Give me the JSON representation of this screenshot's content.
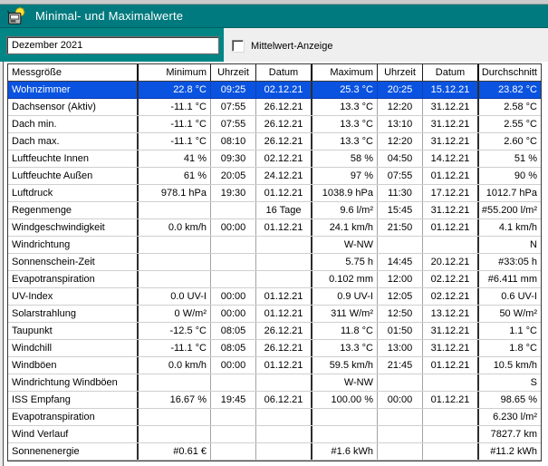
{
  "window": {
    "title": "Minimal- und Maximalwerte",
    "icon": "weather-station-sun-icon"
  },
  "toolbar": {
    "period_value": "Dezember 2021",
    "mittelwert_label": "Mittelwert-Anzeige",
    "mittelwert_checked": false
  },
  "colors": {
    "titlebar_teal": "#007a7e",
    "panel_teal": "#018585",
    "selection_blue": "#0a53e0",
    "grid_background": "#ffffff",
    "window_gray": "#efefef"
  },
  "table": {
    "columns": [
      "Messgröße",
      "Minimum",
      "Uhrzeit",
      "Datum",
      "Maximum",
      "Uhrzeit",
      "Datum",
      "Durchschnitt"
    ],
    "selected_index": 0,
    "rows": [
      [
        "Wohnzimmer",
        "22.8 °C",
        "09:25",
        "02.12.21",
        "25.3 °C",
        "20:25",
        "15.12.21",
        "23.82 °C"
      ],
      [
        "Dachsensor (Aktiv)",
        "-11.1 °C",
        "07:55",
        "26.12.21",
        "13.3 °C",
        "12:20",
        "31.12.21",
        "2.58 °C"
      ],
      [
        "Dach min.",
        "-11.1 °C",
        "07:55",
        "26.12.21",
        "13.3 °C",
        "13:10",
        "31.12.21",
        "2.55 °C"
      ],
      [
        "Dach max.",
        "-11.1 °C",
        "08:10",
        "26.12.21",
        "13.3 °C",
        "12:20",
        "31.12.21",
        "2.60 °C"
      ],
      [
        "Luftfeuchte Innen",
        "41 %",
        "09:30",
        "02.12.21",
        "58 %",
        "04:50",
        "14.12.21",
        "51 %"
      ],
      [
        "Luftfeuchte Außen",
        "61 %",
        "20:05",
        "24.12.21",
        "97 %",
        "07:55",
        "01.12.21",
        "90 %"
      ],
      [
        "Luftdruck",
        "978.1 hPa",
        "19:30",
        "01.12.21",
        "1038.9 hPa",
        "11:30",
        "17.12.21",
        "1012.7 hPa"
      ],
      [
        "Regenmenge",
        "",
        "",
        "16 Tage",
        "9.6 l/m²",
        "15:45",
        "31.12.21",
        "#55.200 l/m²"
      ],
      [
        "Windgeschwindigkeit",
        "0.0 km/h",
        "00:00",
        "01.12.21",
        "24.1 km/h",
        "21:50",
        "01.12.21",
        "4.1 km/h"
      ],
      [
        "Windrichtung",
        "",
        "",
        "",
        "W-NW",
        "",
        "",
        "N"
      ],
      [
        "Sonnenschein-Zeit",
        "",
        "",
        "",
        "5.75 h",
        "14:45",
        "20.12.21",
        "#33:05 h"
      ],
      [
        "Evapotranspiration",
        "",
        "",
        "",
        "0.102 mm",
        "12:00",
        "02.12.21",
        "#6.411 mm"
      ],
      [
        "UV-Index",
        "0.0 UV-I",
        "00:00",
        "01.12.21",
        "0.9 UV-I",
        "12:05",
        "02.12.21",
        "0.6 UV-I"
      ],
      [
        "Solarstrahlung",
        "0 W/m²",
        "00:00",
        "01.12.21",
        "311 W/m²",
        "12:50",
        "13.12.21",
        "50 W/m²"
      ],
      [
        "Taupunkt",
        "-12.5 °C",
        "08:05",
        "26.12.21",
        "11.8 °C",
        "01:50",
        "31.12.21",
        "1.1 °C"
      ],
      [
        "Windchill",
        "-11.1 °C",
        "08:05",
        "26.12.21",
        "13.3 °C",
        "13:00",
        "31.12.21",
        "1.8 °C"
      ],
      [
        "Windböen",
        "0.0 km/h",
        "00:00",
        "01.12.21",
        "59.5 km/h",
        "21:45",
        "01.12.21",
        "10.5 km/h"
      ],
      [
        "Windrichtung Windböen",
        "",
        "",
        "",
        "W-NW",
        "",
        "",
        "S"
      ],
      [
        "ISS Empfang",
        "16.67 %",
        "19:45",
        "06.12.21",
        "100.00 %",
        "00:00",
        "01.12.21",
        "98.65 %"
      ],
      [
        "Evapotranspiration",
        "",
        "",
        "",
        "",
        "",
        "",
        "6.230 l/m²"
      ],
      [
        "Wind Verlauf",
        "",
        "",
        "",
        "",
        "",
        "",
        "7827.7 km"
      ],
      [
        "Sonnenenergie",
        "#0.61 €",
        "",
        "",
        "#1.6 kWh",
        "",
        "",
        "#11.2 kWh"
      ]
    ]
  }
}
